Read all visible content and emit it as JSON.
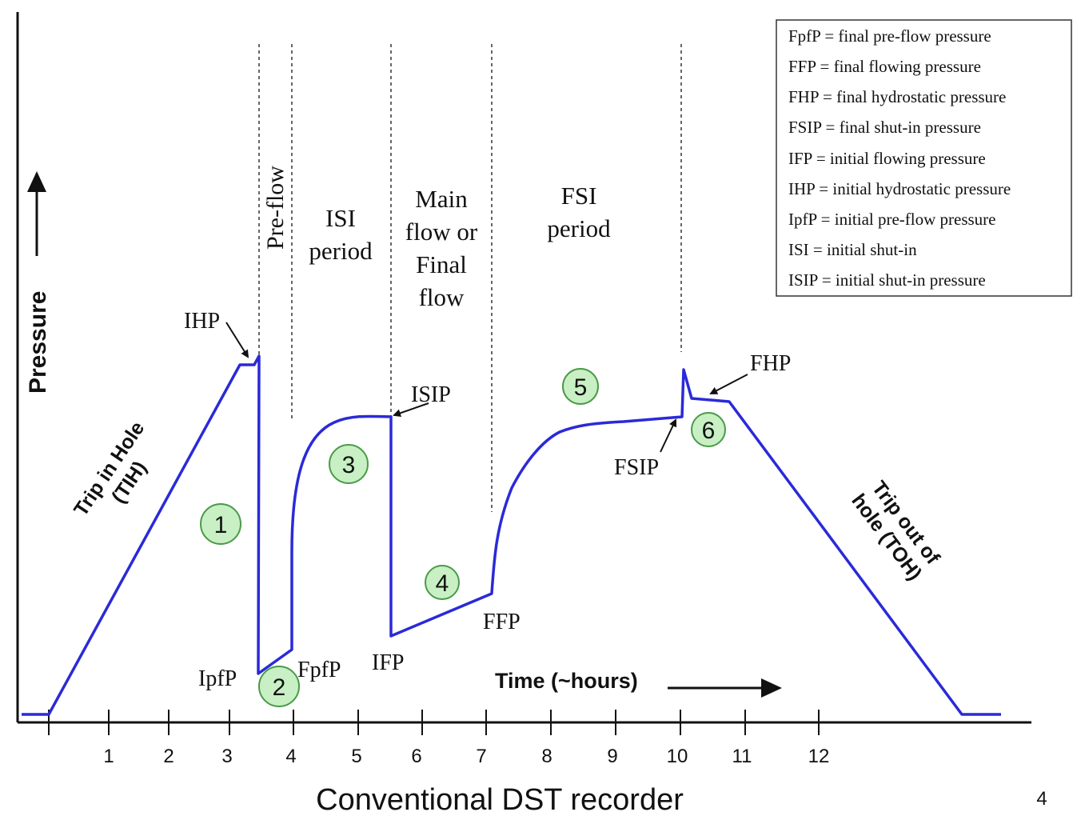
{
  "axes": {
    "y_label": "Pressure",
    "x_label": "Time (~hours)",
    "x_ticks": [
      "1",
      "2",
      "3",
      "4",
      "5",
      "6",
      "7",
      "8",
      "9",
      "10",
      "11",
      "12"
    ]
  },
  "caption": "Conventional DST recorder",
  "page_number": "4",
  "periods": {
    "preflow": "Pre-flow",
    "isi": [
      "ISI",
      "period"
    ],
    "main": [
      "Main",
      "flow or",
      "Final",
      "flow"
    ],
    "fsi": [
      "FSI",
      "period"
    ]
  },
  "labels": {
    "ihp": "IHP",
    "ipfp": "IpfP",
    "fpfp": "FpfP",
    "ifp": "IFP",
    "isip": "ISIP",
    "ffp": "FFP",
    "fsip": "FSIP",
    "fhp": "FHP",
    "tih": [
      "Trip in Hole",
      "(TIH)"
    ],
    "toh": [
      "Trip out of",
      "hole (TOH)"
    ]
  },
  "badges": [
    "1",
    "2",
    "3",
    "4",
    "5",
    "6"
  ],
  "legend": [
    "FpfP = final pre-flow pressure",
    "FFP = final flowing pressure",
    "FHP = final hydrostatic pressure",
    "FSIP = final shut-in pressure",
    "IFP = initial flowing pressure",
    "IHP = initial hydrostatic pressure",
    "IpfP = initial pre-flow pressure",
    "ISI = initial shut-in",
    "ISIP = initial shut-in pressure"
  ],
  "colors": {
    "curve": "#2a2ad8",
    "badge_fill": "#c8f0c4",
    "badge_stroke": "#4a9a48"
  }
}
